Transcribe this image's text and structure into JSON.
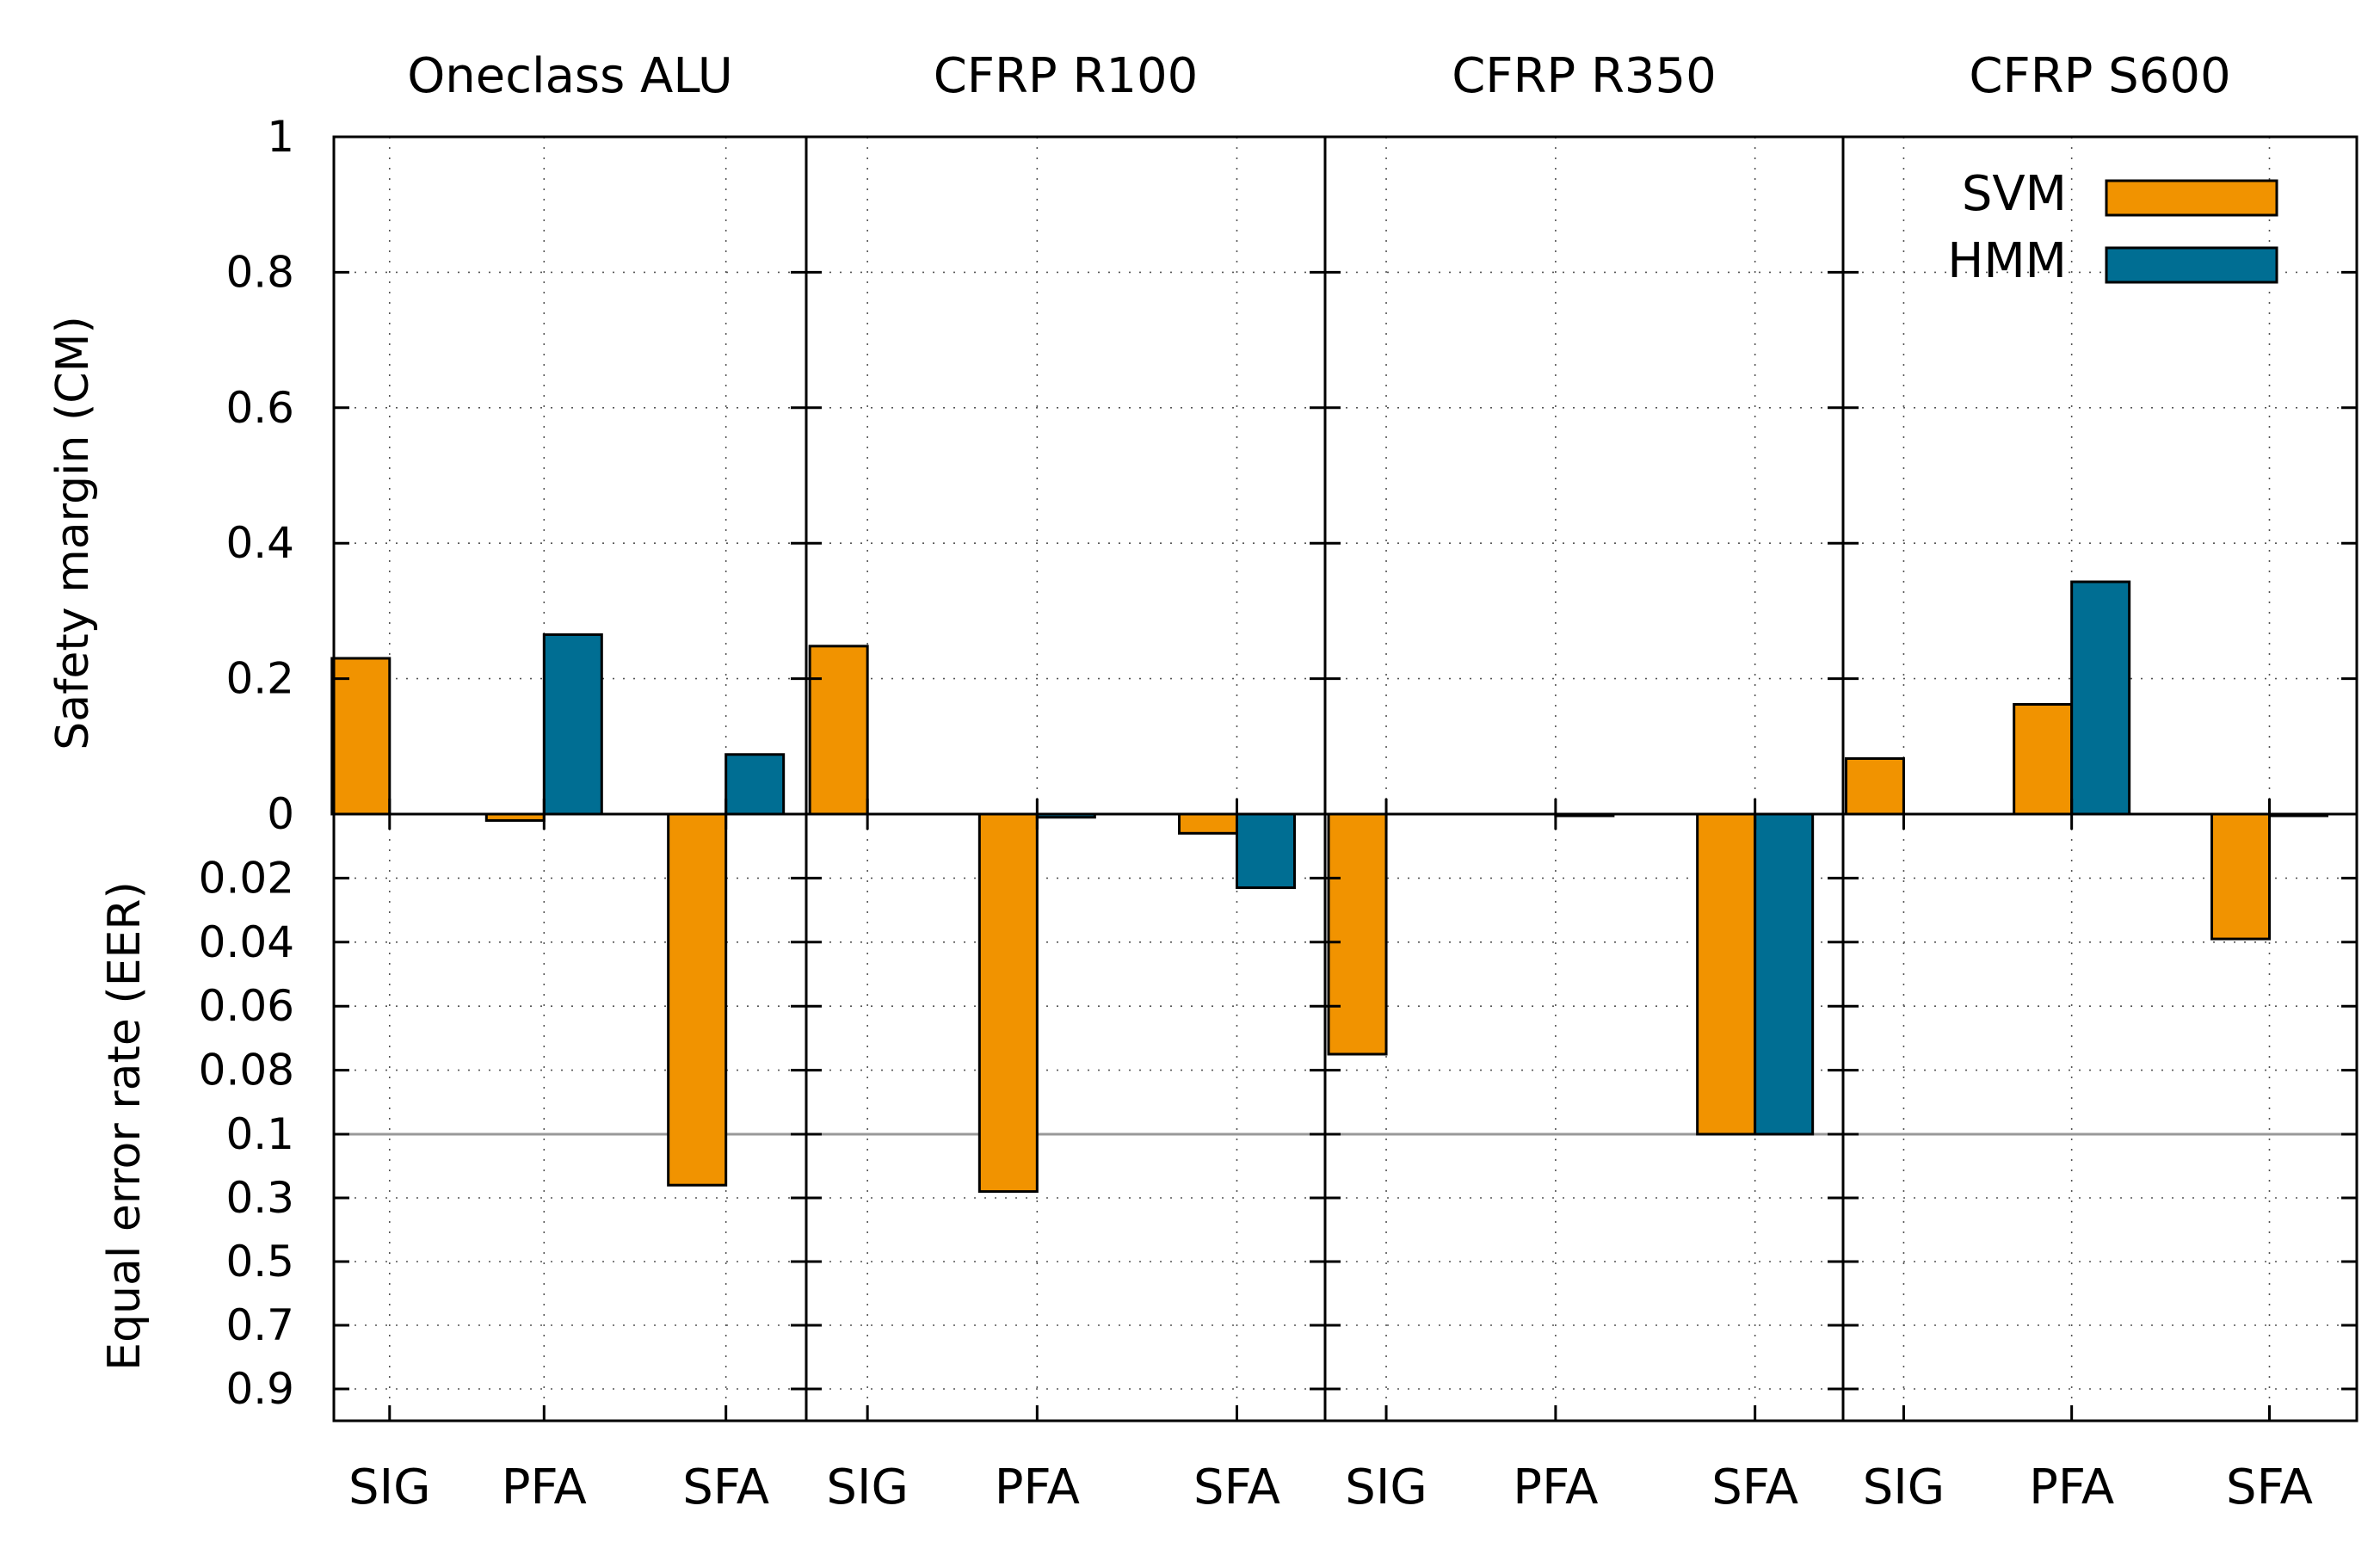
{
  "chart_data": {
    "type": "bar",
    "panels": [
      "Oneclass ALU",
      "CFRP R100",
      "CFRP R350",
      "CFRP S600"
    ],
    "categories": [
      "SIG",
      "PFA",
      "SFA"
    ],
    "legend": {
      "placement": "top-right",
      "entries": [
        "SVM",
        "HMM"
      ]
    },
    "colors": {
      "SVM": "#f19300",
      "HMM": "#006e93",
      "border": "#000000",
      "threshold_line": "#999999"
    },
    "grid": true,
    "upper_axis": {
      "ylabel": "Safety margin (CM)",
      "ylim": [
        0,
        1
      ],
      "ticks": [
        0,
        0.2,
        0.4,
        0.6,
        0.8,
        1
      ],
      "tick_labels": [
        "0",
        "0.2",
        "0.4",
        "0.6",
        "0.8",
        "1"
      ]
    },
    "lower_axis": {
      "ylabel": "Equal error rate (EER)",
      "note": "piecewise scale, inverted: 0 to 0.1 then 0.1 to 1",
      "ticks": [
        0.02,
        0.04,
        0.06,
        0.08,
        0.1,
        0.3,
        0.5,
        0.7,
        0.9
      ],
      "tick_labels": [
        "0.02",
        "0.04",
        "0.06",
        "0.08",
        "0.1",
        "0.3",
        "0.5",
        "0.7",
        "0.9"
      ],
      "threshold": 0.1
    },
    "series": [
      {
        "name": "SVM",
        "values": [
          [
            {
              "cm": 0.23
            },
            {
              "eer": 0.002
            },
            {
              "eer": 0.26
            }
          ],
          [
            {
              "cm": 0.248
            },
            {
              "eer": 0.28
            },
            {
              "eer": 0.006
            }
          ],
          [
            {
              "eer": 0.075
            },
            null,
            {
              "eer": 0.1
            }
          ],
          [
            {
              "cm": 0.082
            },
            {
              "cm": 0.162
            },
            {
              "eer": 0.039
            }
          ]
        ]
      },
      {
        "name": "HMM",
        "values": [
          [
            null,
            {
              "cm": 0.265
            },
            {
              "cm": 0.088
            }
          ],
          [
            null,
            {
              "eer": 0.001
            },
            {
              "eer": 0.023
            }
          ],
          [
            null,
            {
              "eer": 0.0005
            },
            {
              "eer": 0.1
            }
          ],
          [
            null,
            {
              "cm": 0.343
            },
            {
              "eer": 0.0005
            }
          ]
        ]
      }
    ]
  }
}
